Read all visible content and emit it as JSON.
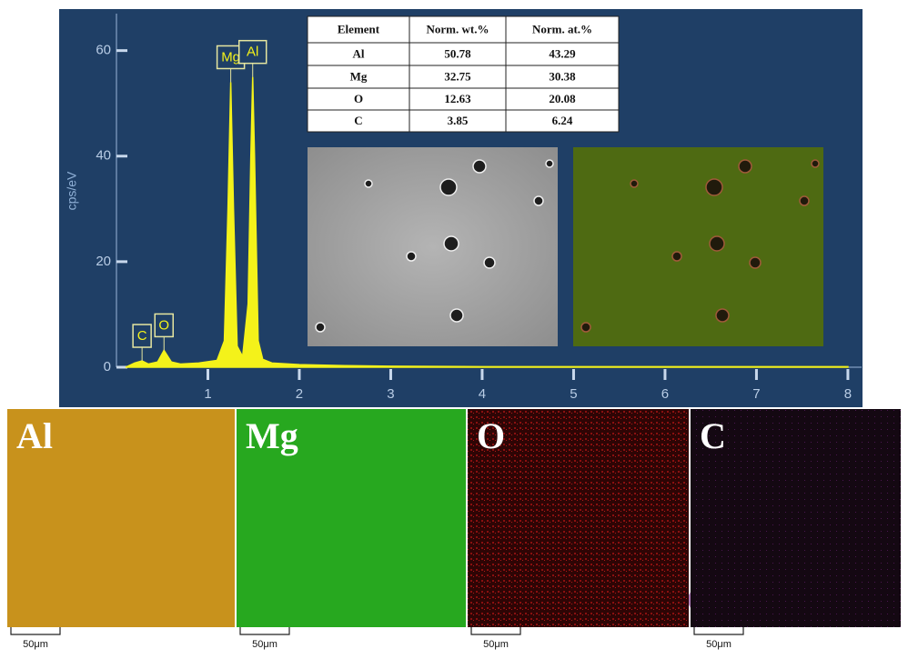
{
  "chart_data": {
    "type": "area",
    "y_label": "cps/eV",
    "x": [
      0.1,
      0.2,
      0.28,
      0.35,
      0.45,
      0.52,
      0.6,
      0.7,
      0.9,
      1.1,
      1.18,
      1.22,
      1.25,
      1.28,
      1.32,
      1.38,
      1.44,
      1.47,
      1.49,
      1.51,
      1.55,
      1.6,
      1.7,
      2.0,
      2.5,
      3.0,
      4.0,
      5.0,
      6.0,
      7.0,
      8.0
    ],
    "values": [
      0,
      0.8,
      1.2,
      0.6,
      1,
      3.2,
      1,
      0.6,
      0.8,
      1.3,
      5,
      30,
      54,
      30,
      4,
      2,
      12,
      40,
      55,
      40,
      5,
      1.5,
      0.8,
      0.5,
      0.3,
      0.2,
      0.1,
      0.1,
      0.1,
      0.1,
      0.1
    ],
    "color": "#f4f21a",
    "xlim": [
      0,
      8.15
    ],
    "ylim": [
      0,
      67
    ],
    "xticks": [
      1,
      2,
      3,
      4,
      5,
      6,
      7,
      8
    ],
    "yticks": [
      0,
      20,
      40,
      60
    ],
    "annotations": [
      {
        "text": "C",
        "x": 0.28
      },
      {
        "text": "O",
        "x": 0.52
      },
      {
        "text": "Mg",
        "x": 1.25
      },
      {
        "text": "Al",
        "x": 1.49
      }
    ]
  },
  "table": {
    "header": [
      "Element",
      "Norm. wt.%",
      "Norm. at.%"
    ],
    "rows": [
      [
        "Al",
        "50.78",
        "43.29"
      ],
      [
        "Mg",
        "32.75",
        "30.38"
      ],
      [
        "O",
        "12.63",
        "20.08"
      ],
      [
        "C",
        "3.85",
        "6.24"
      ]
    ]
  },
  "maps": [
    {
      "label": "Al",
      "scale_bar": "50μm"
    },
    {
      "label": "Mg",
      "scale_bar": "50μm"
    },
    {
      "label": "O",
      "scale_bar": "50μm"
    },
    {
      "label": "C",
      "scale_bar": "50μm"
    }
  ]
}
